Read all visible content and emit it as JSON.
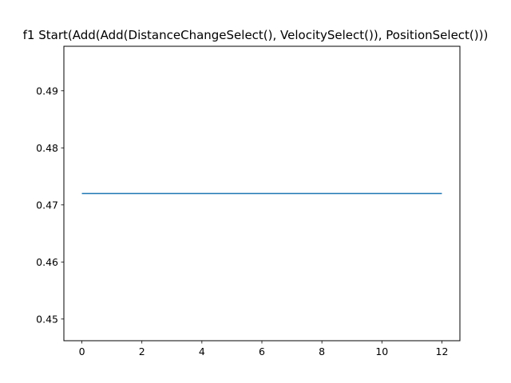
{
  "chart_data": {
    "type": "line",
    "title": "f1 Start(Add(Add(DistanceChangeSelect(), VelocitySelect()), PositionSelect()))",
    "xlabel": "",
    "ylabel": "",
    "xlim": [
      -0.6,
      12.6
    ],
    "ylim": [
      0.4462,
      0.4978
    ],
    "x_ticks": [
      0,
      2,
      4,
      6,
      8,
      10,
      12
    ],
    "x_tick_labels": [
      "0",
      "2",
      "4",
      "6",
      "8",
      "10",
      "12"
    ],
    "y_ticks": [
      0.45,
      0.46,
      0.47,
      0.48,
      0.49
    ],
    "y_tick_labels": [
      "0.45",
      "0.46",
      "0.47",
      "0.48",
      "0.49"
    ],
    "grid": false,
    "series": [
      {
        "name": "f1",
        "color": "#1f77b4",
        "x": [
          0,
          1,
          2,
          3,
          4,
          5,
          6,
          7,
          8,
          9,
          10,
          11,
          12
        ],
        "values": [
          0.472,
          0.472,
          0.472,
          0.472,
          0.472,
          0.472,
          0.472,
          0.472,
          0.472,
          0.472,
          0.472,
          0.472,
          0.472
        ]
      }
    ]
  }
}
